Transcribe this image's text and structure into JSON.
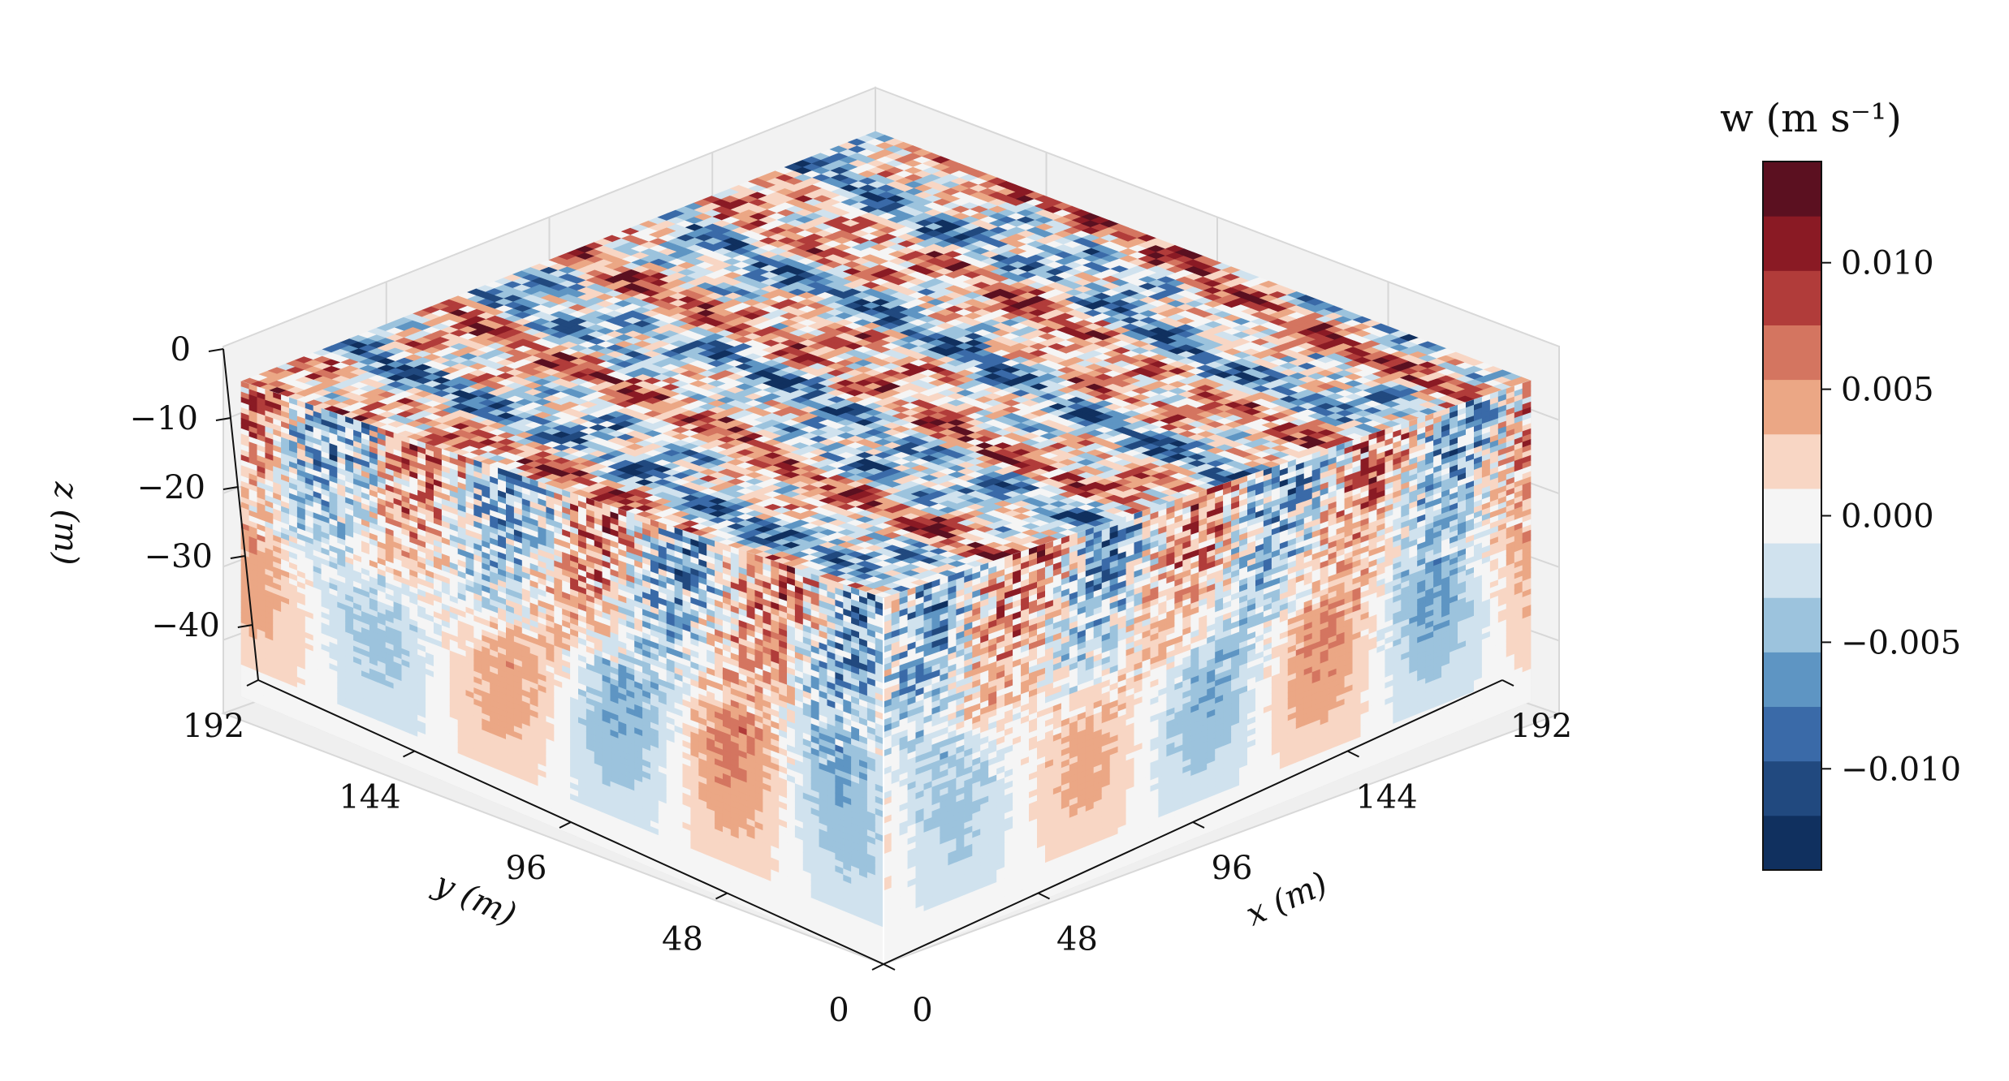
{
  "chart_data": {
    "type": "heatmap",
    "subtype": "3d-volume-contour",
    "variable": "w",
    "colorbar_title": "w (m s⁻¹)",
    "x_axis": {
      "label": "x (m)",
      "ticks": [
        0,
        48,
        96,
        144,
        192
      ],
      "range": [
        0,
        192
      ]
    },
    "y_axis": {
      "label": "y (m)",
      "ticks": [
        0,
        48,
        96,
        144,
        192
      ],
      "range": [
        0,
        192
      ]
    },
    "z_axis": {
      "label": "z (m)",
      "ticks": [
        0,
        -10,
        -20,
        -30,
        -40
      ],
      "range": [
        -48,
        0
      ]
    },
    "colorbar": {
      "ticks": [
        0.01,
        0.005,
        0.0,
        -0.005,
        -0.01
      ],
      "tick_labels": [
        "0.010",
        "0.005",
        "0.000",
        "−0.005",
        "−0.010"
      ],
      "range": [
        -0.014,
        0.014
      ],
      "levels": 13,
      "colormap": "RdBu_r",
      "colors": [
        "#10305f",
        "#21497f",
        "#3a6aa8",
        "#5e95c3",
        "#9cc3dd",
        "#d0e2ee",
        "#f5f5f5",
        "#f8d6c4",
        "#eba785",
        "#d47560",
        "#b13c3a",
        "#8a1a24",
        "#5b1020"
      ]
    },
    "grid": true,
    "pane_color": "#f2f2f2"
  }
}
